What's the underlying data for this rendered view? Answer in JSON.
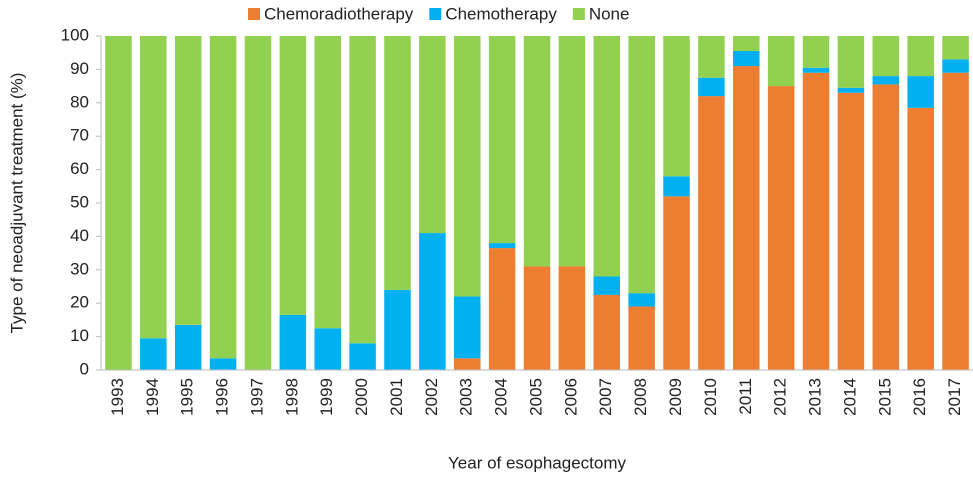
{
  "chart_data": {
    "type": "stacked_bar",
    "x_label": "Year of esophagectomy",
    "y_label": "Type of neoadjuvant treatment (%)",
    "categories": [
      "1993",
      "1994",
      "1995",
      "1996",
      "1997",
      "1998",
      "1999",
      "2000",
      "2001",
      "2002",
      "2003",
      "2004",
      "2005",
      "2006",
      "2007",
      "2008",
      "2009",
      "2010",
      "2011",
      "2012",
      "2013",
      "2014",
      "2015",
      "2016",
      "2017"
    ],
    "series": [
      {
        "name": "Chemoradiotherapy",
        "color": "#ed7d31",
        "values": [
          0,
          0,
          0,
          0,
          0,
          0,
          0,
          0,
          0,
          0,
          3.5,
          36.5,
          31,
          31,
          22.5,
          19,
          52,
          82,
          91,
          85,
          89,
          83,
          85.5,
          78.5,
          89
        ]
      },
      {
        "name": "Chemotherapy",
        "color": "#00b0f0",
        "values": [
          0,
          9.5,
          13.5,
          3.5,
          0,
          16.5,
          12.5,
          8,
          24,
          41,
          18.5,
          1.5,
          0,
          0,
          5.5,
          4,
          6,
          5.5,
          4.5,
          0,
          1.5,
          1.5,
          2.5,
          9.5,
          4
        ]
      },
      {
        "name": "None",
        "color": "#92d050",
        "values": [
          100,
          90.5,
          86.5,
          96.5,
          100,
          83.5,
          87.5,
          92,
          76,
          59,
          78,
          62,
          69,
          69,
          72,
          77,
          42,
          12.5,
          4.5,
          15,
          9.5,
          15.5,
          12,
          12,
          7
        ]
      }
    ],
    "ylim": [
      0,
      100
    ],
    "yticks": [
      0,
      10,
      20,
      30,
      40,
      50,
      60,
      70,
      80,
      90,
      100
    ],
    "legend": "top",
    "grid": false
  }
}
